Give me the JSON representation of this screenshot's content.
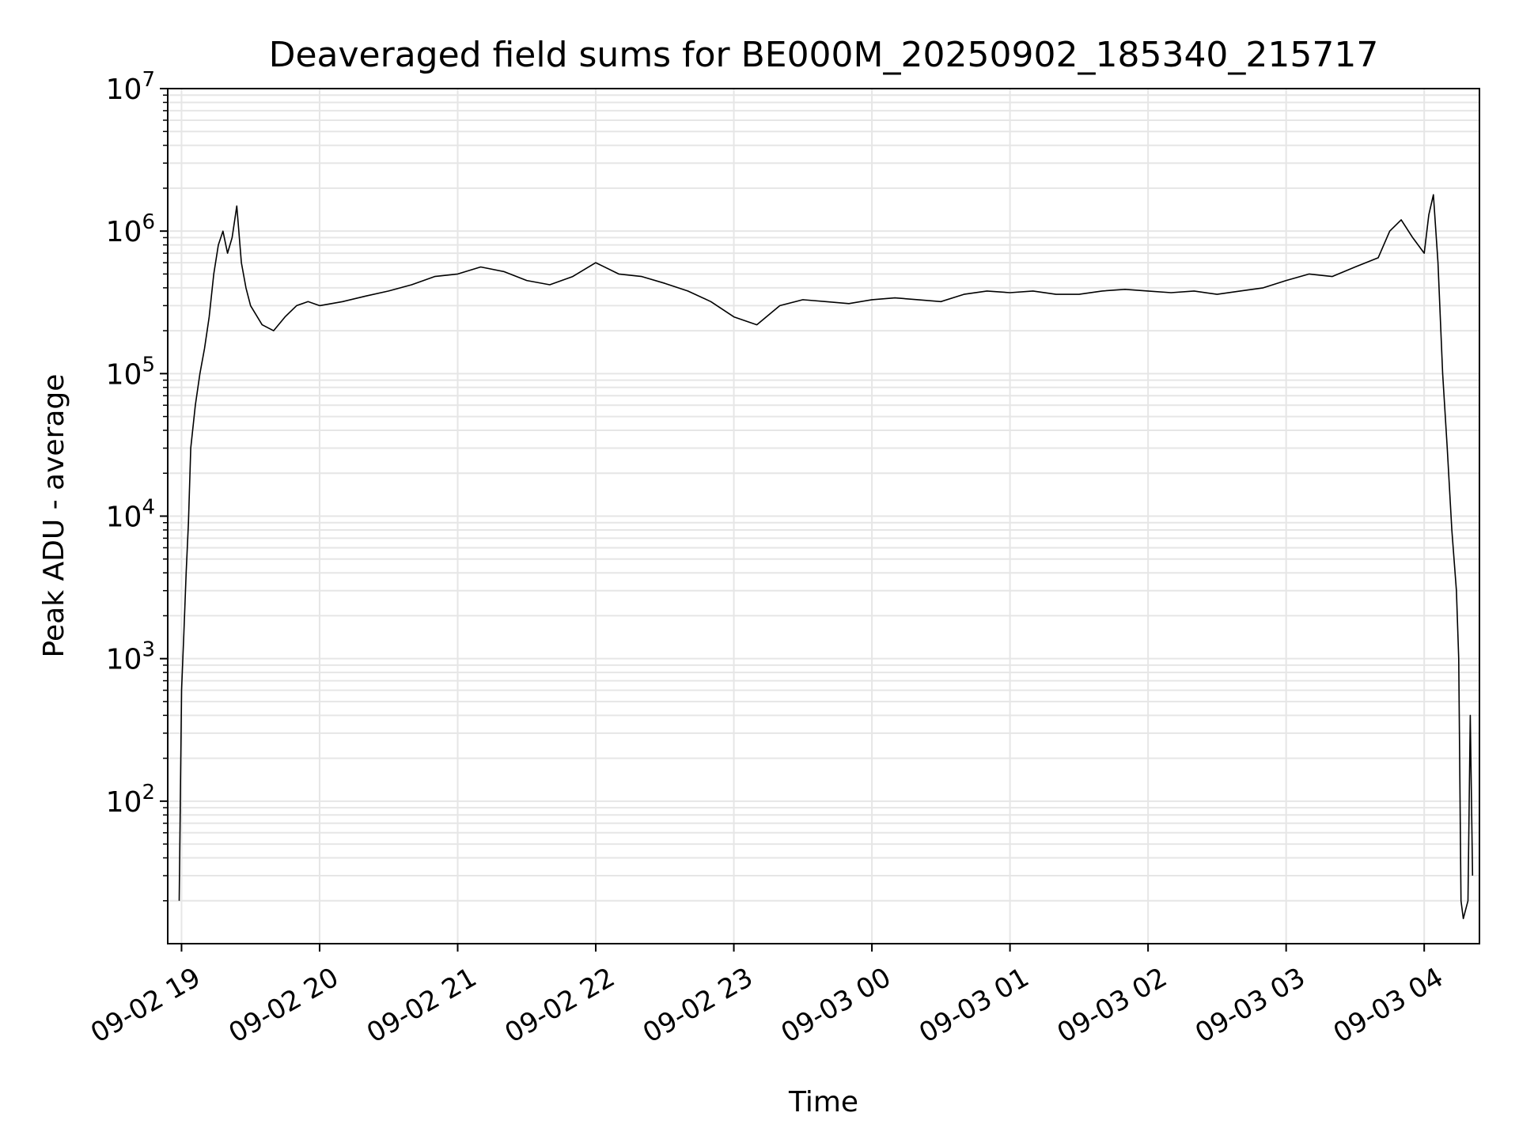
{
  "chart_data": {
    "type": "line",
    "title": "Deaveraged field sums for BE000M_20250902_185340_215717",
    "xlabel": "Time",
    "ylabel": "Peak ADU - average",
    "yscale": "log",
    "ylim": [
      10,
      10000000
    ],
    "xlim": [
      "09-02 18:54",
      "09-03 04:24"
    ],
    "grid": true,
    "x_ticks": [
      "09-02 19",
      "09-02 20",
      "09-02 21",
      "09-02 22",
      "09-02 23",
      "09-03 00",
      "09-03 01",
      "09-03 02",
      "09-03 03",
      "09-03 04"
    ],
    "y_ticks": [
      {
        "base": "10",
        "exp": "2",
        "value": 100
      },
      {
        "base": "10",
        "exp": "3",
        "value": 1000
      },
      {
        "base": "10",
        "exp": "4",
        "value": 10000
      },
      {
        "base": "10",
        "exp": "5",
        "value": 100000
      },
      {
        "base": "10",
        "exp": "6",
        "value": 1000000
      },
      {
        "base": "10",
        "exp": "7",
        "value": 10000000
      }
    ],
    "line_color": "#000000",
    "grid_color": "#e6e6e6",
    "series": [
      {
        "x": [
          "09-02 18:59",
          "09-02 19:00",
          "09-02 19:01",
          "09-02 19:02",
          "09-02 19:03",
          "09-02 19:04",
          "09-02 19:06",
          "09-02 19:08",
          "09-02 19:10",
          "09-02 19:12",
          "09-02 19:14",
          "09-02 19:16",
          "09-02 19:18",
          "09-02 19:20",
          "09-02 19:22",
          "09-02 19:24",
          "09-02 19:26",
          "09-02 19:28",
          "09-02 19:30",
          "09-02 19:35",
          "09-02 19:40",
          "09-02 19:45",
          "09-02 19:50",
          "09-02 19:55",
          "09-02 20:00",
          "09-02 20:10",
          "09-02 20:20",
          "09-02 20:30",
          "09-02 20:40",
          "09-02 20:50",
          "09-02 21:00",
          "09-02 21:10",
          "09-02 21:20",
          "09-02 21:30",
          "09-02 21:40",
          "09-02 21:50",
          "09-02 22:00",
          "09-02 22:10",
          "09-02 22:20",
          "09-02 22:30",
          "09-02 22:40",
          "09-02 22:50",
          "09-02 23:00",
          "09-02 23:10",
          "09-02 23:20",
          "09-02 23:30",
          "09-02 23:40",
          "09-02 23:50",
          "09-03 00:00",
          "09-03 00:10",
          "09-03 00:20",
          "09-03 00:30",
          "09-03 00:40",
          "09-03 00:50",
          "09-03 01:00",
          "09-03 01:10",
          "09-03 01:20",
          "09-03 01:30",
          "09-03 01:40",
          "09-03 01:50",
          "09-03 02:00",
          "09-03 02:10",
          "09-03 02:20",
          "09-03 02:30",
          "09-03 02:40",
          "09-03 02:50",
          "09-03 03:00",
          "09-03 03:10",
          "09-03 03:20",
          "09-03 03:30",
          "09-03 03:40",
          "09-03 03:45",
          "09-03 03:50",
          "09-03 03:55",
          "09-03 04:00",
          "09-03 04:02",
          "09-03 04:04",
          "09-03 04:06",
          "09-03 04:08",
          "09-03 04:10",
          "09-03 04:12",
          "09-03 04:14",
          "09-03 04:15",
          "09-03 04:16",
          "09-03 04:17",
          "09-03 04:19",
          "09-03 04:20",
          "09-03 04:21"
        ],
        "y": [
          20,
          600,
          1500,
          4000,
          9000,
          30000,
          60000,
          100000,
          150000,
          250000,
          500000,
          800000,
          1000000,
          700000,
          900000,
          1500000,
          600000,
          400000,
          300000,
          220000,
          200000,
          250000,
          300000,
          320000,
          300000,
          320000,
          350000,
          380000,
          420000,
          480000,
          500000,
          560000,
          520000,
          450000,
          420000,
          480000,
          600000,
          500000,
          480000,
          430000,
          380000,
          320000,
          250000,
          220000,
          300000,
          330000,
          320000,
          310000,
          330000,
          340000,
          330000,
          320000,
          360000,
          380000,
          370000,
          380000,
          360000,
          360000,
          380000,
          390000,
          380000,
          370000,
          380000,
          360000,
          380000,
          400000,
          450000,
          500000,
          480000,
          560000,
          650000,
          1000000,
          1200000,
          900000,
          700000,
          1300000,
          1800000,
          600000,
          100000,
          30000,
          8000,
          3000,
          1000,
          20,
          15,
          20,
          400,
          30
        ]
      }
    ]
  }
}
